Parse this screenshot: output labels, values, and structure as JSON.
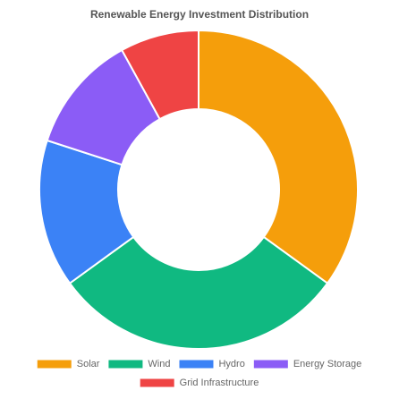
{
  "chart_data": {
    "type": "doughnut",
    "title": "Renewable Energy Investment Distribution",
    "categories": [
      "Solar",
      "Wind",
      "Hydro",
      "Energy Storage",
      "Grid Infrastructure"
    ],
    "values": [
      35,
      30,
      15,
      12,
      8
    ],
    "colors": [
      "#f59e0b",
      "#10b981",
      "#3b82f6",
      "#8b5cf6",
      "#ef4444"
    ],
    "legend": "bottom"
  }
}
